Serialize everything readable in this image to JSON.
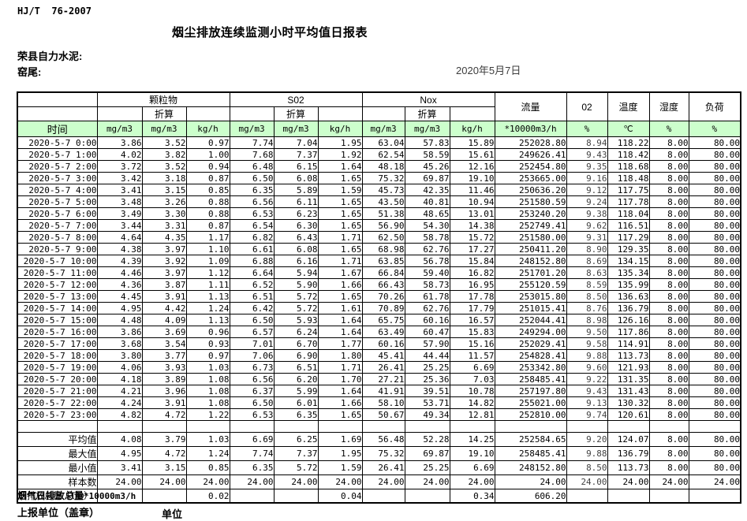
{
  "page": {
    "standard": "HJ/T  76-2007",
    "title": "烟尘排放连续监测小时平均值日报表",
    "company": "荣县自力水泥:",
    "location": "窑尾:",
    "date": "2020年5月7日"
  },
  "table": {
    "time_label": "时间",
    "converted_label": "折算",
    "groups": {
      "pm": "颗粒物",
      "so2": "S02",
      "nox": "Nox"
    },
    "col_headers": {
      "flow": "流量",
      "o2": "02",
      "temp": "温度",
      "humidity": "湿度",
      "load": "负荷"
    },
    "units": [
      "mg/m3",
      "mg/m3",
      "kg/h",
      "mg/m3",
      "mg/m3",
      "kg/h",
      "mg/m3",
      "mg/m3",
      "kg/h",
      "*10000m3/h",
      "%",
      "℃",
      "%",
      "%"
    ],
    "rows": [
      [
        "2020-5-7 0:00",
        "3.86",
        "3.52",
        "0.97",
        "7.74",
        "7.04",
        "1.95",
        "63.04",
        "57.83",
        "15.89",
        "252028.80",
        "8.94",
        "118.22",
        "8.00",
        "80.00"
      ],
      [
        "2020-5-7 1:00",
        "4.02",
        "3.82",
        "1.00",
        "7.68",
        "7.37",
        "1.92",
        "62.54",
        "58.59",
        "15.61",
        "249626.41",
        "9.43",
        "118.42",
        "8.00",
        "80.00"
      ],
      [
        "2020-5-7 2:00",
        "3.72",
        "3.52",
        "0.94",
        "6.48",
        "6.15",
        "1.64",
        "48.18",
        "45.26",
        "12.16",
        "252454.80",
        "9.35",
        "118.68",
        "8.00",
        "80.00"
      ],
      [
        "2020-5-7 3:00",
        "3.42",
        "3.18",
        "0.87",
        "6.50",
        "6.08",
        "1.65",
        "75.32",
        "69.87",
        "19.10",
        "253665.00",
        "9.16",
        "118.48",
        "8.00",
        "80.00"
      ],
      [
        "2020-5-7 4:00",
        "3.41",
        "3.15",
        "0.85",
        "6.35",
        "5.89",
        "1.59",
        "45.73",
        "42.35",
        "11.46",
        "250636.20",
        "9.12",
        "117.75",
        "8.00",
        "80.00"
      ],
      [
        "2020-5-7 5:00",
        "3.48",
        "3.26",
        "0.88",
        "6.56",
        "6.11",
        "1.65",
        "43.50",
        "40.81",
        "10.94",
        "251580.59",
        "9.24",
        "117.78",
        "8.00",
        "80.00"
      ],
      [
        "2020-5-7 6:00",
        "3.49",
        "3.30",
        "0.88",
        "6.53",
        "6.23",
        "1.65",
        "51.38",
        "48.65",
        "13.01",
        "253240.20",
        "9.38",
        "118.04",
        "8.00",
        "80.00"
      ],
      [
        "2020-5-7 7:00",
        "3.44",
        "3.31",
        "0.87",
        "6.54",
        "6.30",
        "1.65",
        "56.90",
        "54.30",
        "14.38",
        "252749.41",
        "9.62",
        "116.51",
        "8.00",
        "80.00"
      ],
      [
        "2020-5-7 8:00",
        "4.64",
        "4.35",
        "1.17",
        "6.82",
        "6.43",
        "1.71",
        "62.50",
        "58.78",
        "15.72",
        "251580.00",
        "9.31",
        "117.29",
        "8.00",
        "80.00"
      ],
      [
        "2020-5-7 9:00",
        "4.38",
        "3.97",
        "1.10",
        "6.61",
        "6.08",
        "1.65",
        "68.98",
        "62.76",
        "17.27",
        "250411.20",
        "8.90",
        "129.35",
        "8.00",
        "80.00"
      ],
      [
        "2020-5-7 10:00",
        "4.39",
        "3.92",
        "1.09",
        "6.88",
        "6.16",
        "1.71",
        "63.85",
        "56.78",
        "15.84",
        "248152.80",
        "8.69",
        "134.15",
        "8.00",
        "80.00"
      ],
      [
        "2020-5-7 11:00",
        "4.46",
        "3.97",
        "1.12",
        "6.64",
        "5.94",
        "1.67",
        "66.84",
        "59.40",
        "16.82",
        "251701.20",
        "8.63",
        "135.34",
        "8.00",
        "80.00"
      ],
      [
        "2020-5-7 12:00",
        "4.36",
        "3.87",
        "1.11",
        "6.52",
        "5.90",
        "1.66",
        "66.43",
        "58.73",
        "16.95",
        "255120.59",
        "8.59",
        "135.99",
        "8.00",
        "80.00"
      ],
      [
        "2020-5-7 13:00",
        "4.45",
        "3.91",
        "1.13",
        "6.51",
        "5.72",
        "1.65",
        "70.26",
        "61.78",
        "17.78",
        "253015.80",
        "8.50",
        "136.63",
        "8.00",
        "80.00"
      ],
      [
        "2020-5-7 14:00",
        "4.95",
        "4.42",
        "1.24",
        "6.42",
        "5.72",
        "1.61",
        "70.89",
        "62.76",
        "17.79",
        "251015.41",
        "8.76",
        "136.79",
        "8.00",
        "80.00"
      ],
      [
        "2020-5-7 15:00",
        "4.48",
        "4.09",
        "1.13",
        "6.50",
        "5.93",
        "1.64",
        "65.75",
        "60.16",
        "16.57",
        "252044.41",
        "8.98",
        "126.16",
        "8.00",
        "80.00"
      ],
      [
        "2020-5-7 16:00",
        "3.86",
        "3.69",
        "0.96",
        "6.57",
        "6.24",
        "1.64",
        "63.49",
        "60.47",
        "15.83",
        "249294.00",
        "9.50",
        "117.86",
        "8.00",
        "80.00"
      ],
      [
        "2020-5-7 17:00",
        "3.68",
        "3.54",
        "0.93",
        "7.01",
        "6.70",
        "1.77",
        "60.16",
        "57.90",
        "15.16",
        "252029.41",
        "9.58",
        "114.91",
        "8.00",
        "80.00"
      ],
      [
        "2020-5-7 18:00",
        "3.80",
        "3.77",
        "0.97",
        "7.06",
        "6.90",
        "1.80",
        "45.41",
        "44.44",
        "11.57",
        "254828.41",
        "9.88",
        "113.73",
        "8.00",
        "80.00"
      ],
      [
        "2020-5-7 19:00",
        "4.06",
        "3.93",
        "1.03",
        "6.73",
        "6.51",
        "1.71",
        "26.41",
        "25.25",
        "6.69",
        "253342.80",
        "9.60",
        "121.93",
        "8.00",
        "80.00"
      ],
      [
        "2020-5-7 20:00",
        "4.18",
        "3.89",
        "1.08",
        "6.56",
        "6.20",
        "1.70",
        "27.21",
        "25.36",
        "7.03",
        "258485.41",
        "9.22",
        "131.35",
        "8.00",
        "80.00"
      ],
      [
        "2020-5-7 21:00",
        "4.21",
        "3.96",
        "1.08",
        "6.37",
        "5.99",
        "1.64",
        "41.91",
        "39.51",
        "10.78",
        "257197.80",
        "9.43",
        "131.43",
        "8.00",
        "80.00"
      ],
      [
        "2020-5-7 22:00",
        "4.24",
        "3.91",
        "1.08",
        "6.50",
        "6.01",
        "1.66",
        "58.10",
        "53.71",
        "14.82",
        "255021.00",
        "9.13",
        "130.32",
        "8.00",
        "80.00"
      ],
      [
        "2020-5-7 23:00",
        "4.82",
        "4.72",
        "1.22",
        "6.53",
        "6.35",
        "1.65",
        "50.67",
        "49.34",
        "12.81",
        "252810.00",
        "9.74",
        "120.61",
        "8.00",
        "80.00"
      ]
    ],
    "summary": [
      {
        "label": "平均值",
        "values": [
          "4.08",
          "3.79",
          "1.03",
          "6.69",
          "6.25",
          "1.69",
          "56.48",
          "52.28",
          "14.25",
          "252584.65",
          "9.20",
          "124.07",
          "8.00",
          "80.00"
        ]
      },
      {
        "label": "最大值",
        "values": [
          "4.95",
          "4.72",
          "1.24",
          "7.74",
          "7.37",
          "1.95",
          "75.32",
          "69.87",
          "19.10",
          "258485.41",
          "9.88",
          "136.79",
          "8.00",
          "80.00"
        ]
      },
      {
        "label": "最小值",
        "values": [
          "3.41",
          "3.15",
          "0.85",
          "6.35",
          "5.72",
          "1.59",
          "26.41",
          "25.25",
          "6.69",
          "248152.80",
          "8.50",
          "113.73",
          "8.00",
          "80.00"
        ]
      },
      {
        "label": "样本数",
        "values": [
          "24.00",
          "24.00",
          "24.00",
          "24.00",
          "24.00",
          "24.00",
          "24.00",
          "24.00",
          "24.00",
          "24.00",
          "24.00",
          "24.00",
          "24.00",
          "24.00"
        ]
      },
      {
        "label": "日排放总量（T/D）",
        "values": [
          "",
          "",
          "0.02",
          "",
          "",
          "0.04",
          "",
          "",
          "0.34",
          "606.20",
          "",
          "",
          "",
          ""
        ]
      }
    ]
  },
  "footer": {
    "flow_total_label_cn": "烟气日排放总量",
    "flow_total_label_unit": "*10000m3/h",
    "report_unit_label": "上报单位（盖章）",
    "unit_label": "单位"
  }
}
